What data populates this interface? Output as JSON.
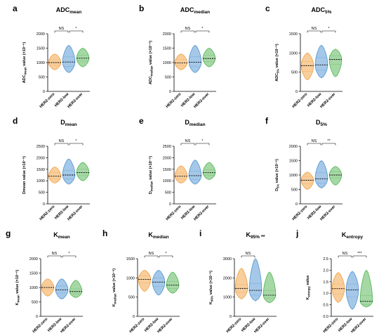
{
  "colors": {
    "HER2-zero": "#f2a64a",
    "HER2-low": "#5b9bd5",
    "HER2-over": "#5cb85c"
  },
  "chart_data": [
    {
      "type": "violin",
      "letter": "a",
      "title_main": "ADC",
      "title_sub": "mean",
      "ylabel_main": "ADC",
      "ylabel_sub": "mean",
      "ylabel_rest": " value (×10⁻⁶)",
      "categories": [
        "HER2-zero",
        "HER2-low",
        "HER2-over"
      ],
      "ylim": [
        0,
        2000
      ],
      "yticks": [
        0,
        500,
        1000,
        1500,
        2000
      ],
      "series": [
        {
          "min": 750,
          "q1": 900,
          "median": 1000,
          "q3": 1100,
          "max": 1300
        },
        {
          "min": 650,
          "q1": 870,
          "median": 1020,
          "q3": 1200,
          "max": 1600
        },
        {
          "min": 850,
          "q1": 1050,
          "median": 1150,
          "q3": 1260,
          "max": 1500
        }
      ],
      "sig": [
        {
          "from": 0,
          "to": 1,
          "label": "NS"
        },
        {
          "from": 1,
          "to": 2,
          "label": "*"
        }
      ]
    },
    {
      "type": "violin",
      "letter": "b",
      "title_main": "ADC",
      "title_sub": "median",
      "ylabel_main": "ADC",
      "ylabel_sub": "median",
      "ylabel_rest": " value (×10⁻⁶)",
      "categories": [
        "HER2-zero",
        "HER2-low",
        "HER2-over"
      ],
      "ylim": [
        0,
        2000
      ],
      "yticks": [
        0,
        500,
        1000,
        1500,
        2000
      ],
      "series": [
        {
          "min": 750,
          "q1": 900,
          "median": 990,
          "q3": 1100,
          "max": 1300
        },
        {
          "min": 650,
          "q1": 860,
          "median": 1010,
          "q3": 1200,
          "max": 1600
        },
        {
          "min": 850,
          "q1": 1040,
          "median": 1140,
          "q3": 1250,
          "max": 1500
        }
      ],
      "sig": [
        {
          "from": 0,
          "to": 1,
          "label": "NS"
        },
        {
          "from": 1,
          "to": 2,
          "label": "*"
        }
      ]
    },
    {
      "type": "violin",
      "letter": "c",
      "title_main": "ADC",
      "title_sub": "5%",
      "ylabel_main": "ADC",
      "ylabel_sub": "5%",
      "ylabel_rest": " value (×10⁻⁶)",
      "categories": [
        "HER2-zero",
        "HER2-low",
        "HER2-over"
      ],
      "ylim": [
        0,
        1500
      ],
      "yticks": [
        0,
        500,
        1000,
        1500
      ],
      "series": [
        {
          "min": 300,
          "q1": 520,
          "median": 670,
          "q3": 780,
          "max": 1000
        },
        {
          "min": 350,
          "q1": 550,
          "median": 690,
          "q3": 880,
          "max": 1200
        },
        {
          "min": 380,
          "q1": 700,
          "median": 830,
          "q3": 920,
          "max": 1100
        }
      ],
      "sig": [
        {
          "from": 0,
          "to": 1,
          "label": "NS"
        },
        {
          "from": 1,
          "to": 2,
          "label": "*"
        }
      ]
    },
    {
      "type": "violin",
      "letter": "d",
      "title_main": "D",
      "title_sub": "mean",
      "ylabel_main": "Dmean",
      "ylabel_sub": "",
      "ylabel_rest": " value (×10⁻⁶)",
      "categories": [
        "HER2-zero",
        "HER2-low",
        "HER2-over"
      ],
      "ylim": [
        0,
        2500
      ],
      "yticks": [
        0,
        500,
        1000,
        1500,
        2000,
        2500
      ],
      "series": [
        {
          "min": 900,
          "q1": 1080,
          "median": 1200,
          "q3": 1350,
          "max": 1600
        },
        {
          "min": 850,
          "q1": 1080,
          "median": 1250,
          "q3": 1450,
          "max": 1950
        },
        {
          "min": 1000,
          "q1": 1220,
          "median": 1360,
          "q3": 1500,
          "max": 1800
        }
      ],
      "sig": [
        {
          "from": 0,
          "to": 1,
          "label": "NS"
        },
        {
          "from": 1,
          "to": 2,
          "label": "*"
        }
      ]
    },
    {
      "type": "violin",
      "letter": "e",
      "title_main": "D",
      "title_sub": "median",
      "ylabel_main": "D",
      "ylabel_sub": "median",
      "ylabel_rest": " value (×10⁻⁶)",
      "categories": [
        "HER2-zero",
        "HER2-low",
        "HER2-over"
      ],
      "ylim": [
        0,
        2500
      ],
      "yticks": [
        0,
        500,
        1000,
        1500,
        2000,
        2500
      ],
      "series": [
        {
          "min": 900,
          "q1": 1080,
          "median": 1200,
          "q3": 1330,
          "max": 1650
        },
        {
          "min": 850,
          "q1": 1060,
          "median": 1220,
          "q3": 1420,
          "max": 1900
        },
        {
          "min": 1050,
          "q1": 1230,
          "median": 1350,
          "q3": 1480,
          "max": 1800
        }
      ],
      "sig": [
        {
          "from": 0,
          "to": 1,
          "label": "NS"
        },
        {
          "from": 1,
          "to": 2,
          "label": "*"
        }
      ]
    },
    {
      "type": "violin",
      "letter": "f",
      "title_main": "D",
      "title_sub": "5%",
      "ylabel_main": "D",
      "ylabel_sub": "5%",
      "ylabel_rest": " value (×10⁻⁶)",
      "categories": [
        "HER2-zero",
        "HER2-low",
        "HER2-over"
      ],
      "ylim": [
        0,
        2000
      ],
      "yticks": [
        0,
        500,
        1000,
        1500,
        2000
      ],
      "series": [
        {
          "min": 500,
          "q1": 700,
          "median": 820,
          "q3": 950,
          "max": 1100
        },
        {
          "min": 550,
          "q1": 720,
          "median": 870,
          "q3": 1080,
          "max": 1500
        },
        {
          "min": 650,
          "q1": 900,
          "median": 1000,
          "q3": 1120,
          "max": 1300
        }
      ],
      "sig": [
        {
          "from": 0,
          "to": 1,
          "label": "NS"
        },
        {
          "from": 1,
          "to": 2,
          "label": "**"
        }
      ]
    },
    {
      "type": "violin",
      "letter": "g",
      "title_main": "K",
      "title_sub": "mean",
      "ylabel_main": "K",
      "ylabel_sub": "mean",
      "ylabel_rest": " value (×10⁻⁶)",
      "categories": [
        "HER2-zero",
        "HER2-low",
        "HER2-over"
      ],
      "ylim": [
        0,
        2000
      ],
      "yticks": [
        0,
        500,
        1000,
        1500,
        2000
      ],
      "series": [
        {
          "min": 700,
          "q1": 920,
          "median": 1000,
          "q3": 1080,
          "max": 1300
        },
        {
          "min": 600,
          "q1": 820,
          "median": 920,
          "q3": 1050,
          "max": 1300
        },
        {
          "min": 650,
          "q1": 780,
          "median": 860,
          "q3": 950,
          "max": 1250
        }
      ],
      "sig": [
        {
          "from": 0,
          "to": 1,
          "label": "NS"
        },
        {
          "from": 1,
          "to": 2,
          "label": "*"
        }
      ]
    },
    {
      "type": "violin",
      "letter": "h",
      "title_main": "K",
      "title_sub": "median",
      "ylabel_main": "K",
      "ylabel_sub": "median",
      "ylabel_rest": " value (×10⁻⁶)",
      "categories": [
        "HER2-zero",
        "HER2-low",
        "HER2-over"
      ],
      "ylim": [
        0,
        1500
      ],
      "yticks": [
        0,
        500,
        1000,
        1500
      ],
      "series": [
        {
          "min": 650,
          "q1": 870,
          "median": 960,
          "q3": 1060,
          "max": 1200
        },
        {
          "min": 550,
          "q1": 780,
          "median": 890,
          "q3": 1000,
          "max": 1200
        },
        {
          "min": 600,
          "q1": 720,
          "median": 810,
          "q3": 900,
          "max": 1150
        }
      ],
      "sig": [
        {
          "from": 0,
          "to": 1,
          "label": "NS"
        },
        {
          "from": 1,
          "to": 2,
          "label": "*"
        }
      ]
    },
    {
      "type": "violin",
      "letter": "i",
      "title_main": "K",
      "title_sub": "95%",
      "title_after": "**",
      "ylabel_main": "K",
      "ylabel_sub": "95%",
      "ylabel_rest": " value (×10⁻⁶)",
      "categories": [
        "HER2-zero",
        "HER2-low",
        "HER2-over"
      ],
      "ylim": [
        0,
        3000
      ],
      "yticks": [
        0,
        1000,
        2000,
        3000
      ],
      "series": [
        {
          "min": 900,
          "q1": 1250,
          "median": 1450,
          "q3": 1650,
          "max": 2500
        },
        {
          "min": 800,
          "q1": 1100,
          "median": 1350,
          "q3": 1700,
          "max": 3000
        },
        {
          "min": 700,
          "q1": 950,
          "median": 1100,
          "q3": 1350,
          "max": 2300
        }
      ],
      "sig": [
        {
          "from": 0,
          "to": 1,
          "label": "NS"
        }
      ]
    },
    {
      "type": "violin",
      "letter": "j",
      "title_main": "K",
      "title_sub": "entropy",
      "ylabel_main": "K",
      "ylabel_sub": "entropy",
      "ylabel_rest": " value",
      "categories": [
        "HER2-zero",
        "HER2-low",
        "HER2-over"
      ],
      "ylim": [
        0.0,
        2.5
      ],
      "yticks": [
        0.0,
        0.5,
        1.0,
        1.5,
        2.0,
        2.5
      ],
      "series": [
        {
          "min": 0.6,
          "q1": 0.95,
          "median": 1.2,
          "q3": 1.4,
          "max": 1.9
        },
        {
          "min": 0.3,
          "q1": 0.85,
          "median": 1.15,
          "q3": 1.4,
          "max": 1.95
        },
        {
          "min": 0.4,
          "q1": 0.5,
          "median": 0.65,
          "q3": 0.9,
          "max": 2.0
        }
      ],
      "sig": [
        {
          "from": 0,
          "to": 1,
          "label": "NS"
        },
        {
          "from": 1,
          "to": 2,
          "label": "***"
        }
      ]
    }
  ]
}
